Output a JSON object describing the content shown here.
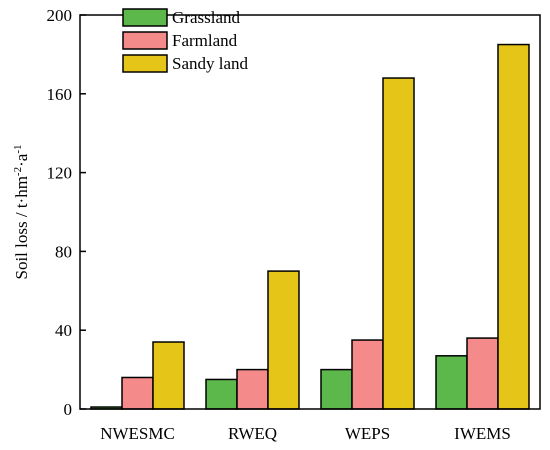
{
  "chart_data": {
    "type": "bar",
    "title": "",
    "xlabel": "",
    "ylabel_main": "Soil loss / t·hm",
    "ylabel_sup1": "-2",
    "ylabel_mid": "·a",
    "ylabel_sup2": "-1",
    "ylim": [
      0,
      200
    ],
    "yticks": [
      0,
      40,
      80,
      120,
      160,
      200
    ],
    "categories": [
      "NWESMC",
      "RWEQ",
      "WEPS",
      "IWEMS"
    ],
    "series": [
      {
        "name": "Grassland",
        "color": "#5cb84a",
        "values": [
          1,
          15,
          20,
          27
        ]
      },
      {
        "name": "Farmland",
        "color": "#f58a8a",
        "values": [
          16,
          20,
          35,
          36
        ]
      },
      {
        "name": "Sandy land",
        "color": "#e6c519",
        "values": [
          34,
          70,
          168,
          185
        ]
      }
    ],
    "legend_position": "top-left",
    "grid": false
  }
}
